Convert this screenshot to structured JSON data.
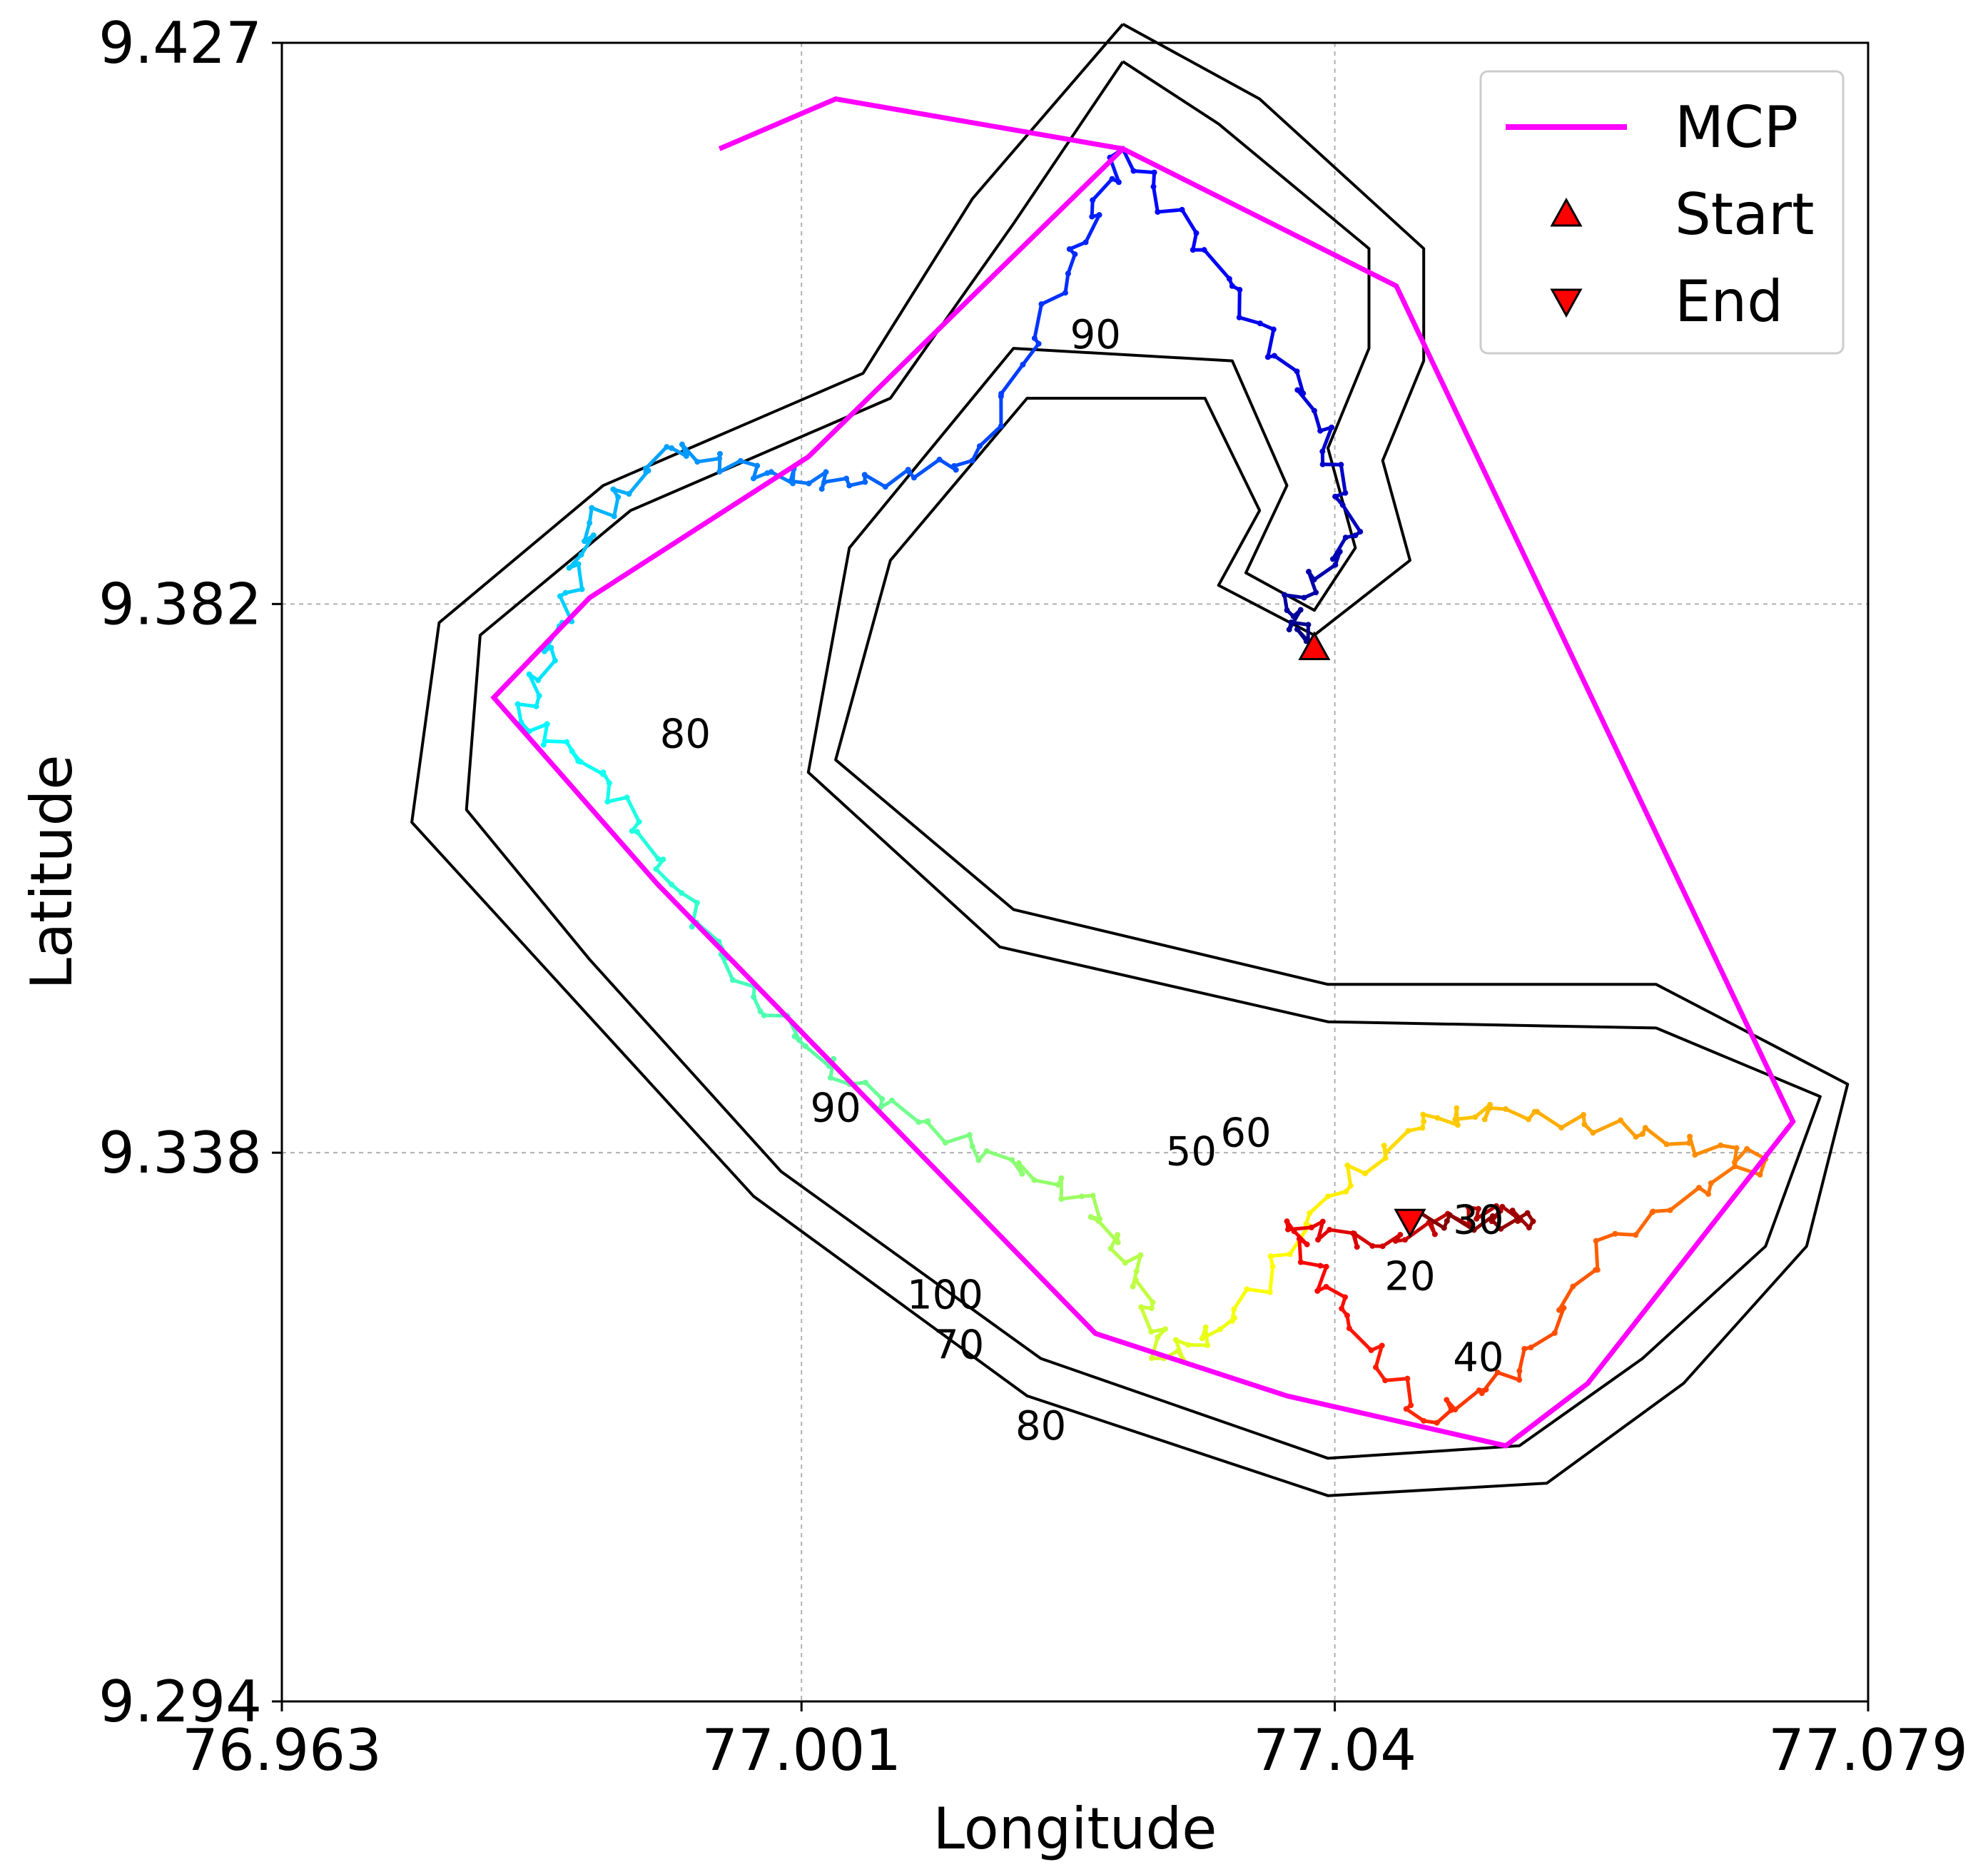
{
  "chart_data": {
    "type": "line",
    "xlabel": "Longitude",
    "ylabel": "Latitude",
    "xlim": [
      76.963,
      77.079
    ],
    "ylim": [
      9.294,
      9.427
    ],
    "xticks": [
      {
        "value": 76.963,
        "label": "76.963"
      },
      {
        "value": 77.001,
        "label": "77.001"
      },
      {
        "value": 77.04,
        "label": "77.04"
      },
      {
        "value": 77.079,
        "label": "77.079"
      }
    ],
    "yticks": [
      {
        "value": 9.294,
        "label": "9.294"
      },
      {
        "value": 9.338,
        "label": "9.338"
      },
      {
        "value": 9.382,
        "label": "9.382"
      },
      {
        "value": 9.427,
        "label": "9.427"
      }
    ],
    "grid": true,
    "legend": {
      "placement": "top-right",
      "entries": [
        {
          "label": "MCP",
          "marker": "line",
          "color": "#ff00ff"
        },
        {
          "label": "Start",
          "marker": "triangle-up",
          "color": "#ff0000"
        },
        {
          "label": "End",
          "marker": "triangle-down",
          "color": "#ff0000"
        }
      ]
    },
    "mcp": {
      "name": "MCP",
      "color": "#ff00ff",
      "points": [
        [
          76.995,
          9.4185
        ],
        [
          77.0035,
          9.4225
        ],
        [
          77.0245,
          9.4185
        ],
        [
          77.0445,
          9.4075
        ],
        [
          77.0735,
          9.3405
        ],
        [
          77.0585,
          9.3195
        ],
        [
          77.0525,
          9.3145
        ],
        [
          77.0365,
          9.3185
        ],
        [
          77.0225,
          9.3235
        ],
        [
          76.9905,
          9.3595
        ],
        [
          76.9785,
          9.3745
        ],
        [
          76.9855,
          9.3825
        ],
        [
          77.0015,
          9.3938
        ],
        [
          77.0245,
          9.4185
        ]
      ]
    },
    "start": {
      "label": "Start",
      "x": 77.0385,
      "y": 9.3785,
      "color": "#ff0000"
    },
    "end": {
      "label": "End",
      "x": 77.0455,
      "y": 9.3325,
      "color": "#ff0000"
    },
    "contour_labels": [
      {
        "text": "90",
        "x": 77.0225,
        "y": 9.4025
      },
      {
        "text": "80",
        "x": 76.9925,
        "y": 9.3705
      },
      {
        "text": "90",
        "x": 77.0035,
        "y": 9.3405
      },
      {
        "text": "100",
        "x": 77.0115,
        "y": 9.3255
      },
      {
        "text": "50",
        "x": 77.0295,
        "y": 9.337
      },
      {
        "text": "60",
        "x": 77.0335,
        "y": 9.3385
      },
      {
        "text": "30",
        "x": 77.0505,
        "y": 9.3315
      },
      {
        "text": "20",
        "x": 77.0455,
        "y": 9.327
      },
      {
        "text": "40",
        "x": 77.0505,
        "y": 9.3205
      },
      {
        "text": "70",
        "x": 77.0125,
        "y": 9.3215
      },
      {
        "text": "80",
        "x": 77.0185,
        "y": 9.315
      }
    ],
    "contours": [
      [
        [
          77.0245,
          9.4285
        ],
        [
          77.0345,
          9.4225
        ],
        [
          77.0465,
          9.4105
        ],
        [
          77.0465,
          9.4015
        ],
        [
          77.0435,
          9.3935
        ],
        [
          77.0455,
          9.3855
        ],
        [
          77.0385,
          9.3795
        ],
        [
          77.0315,
          9.3835
        ],
        [
          77.0345,
          9.3895
        ],
        [
          77.0305,
          9.3985
        ],
        [
          77.0175,
          9.3985
        ],
        [
          77.0075,
          9.3855
        ],
        [
          77.0035,
          9.3695
        ],
        [
          77.0165,
          9.3575
        ],
        [
          77.0395,
          9.3515
        ],
        [
          77.0635,
          9.3515
        ],
        [
          77.0775,
          9.3435
        ],
        [
          77.0745,
          9.3305
        ],
        [
          77.0655,
          9.3195
        ],
        [
          77.0555,
          9.3115
        ],
        [
          77.0395,
          9.3105
        ],
        [
          77.0175,
          9.3185
        ],
        [
          76.9975,
          9.3345
        ],
        [
          76.9825,
          9.3525
        ],
        [
          76.9725,
          9.3645
        ],
        [
          76.9745,
          9.3805
        ],
        [
          76.9865,
          9.3915
        ],
        [
          77.0055,
          9.4005
        ],
        [
          77.0135,
          9.4145
        ],
        [
          77.0245,
          9.4285
        ]
      ],
      [
        [
          77.0245,
          9.4255
        ],
        [
          77.0315,
          9.4205
        ],
        [
          77.0425,
          9.4105
        ],
        [
          77.0425,
          9.4025
        ],
        [
          77.0395,
          9.3945
        ],
        [
          77.0415,
          9.3865
        ],
        [
          77.0385,
          9.3815
        ],
        [
          77.0335,
          9.3845
        ],
        [
          77.0365,
          9.3915
        ],
        [
          77.0325,
          9.4015
        ],
        [
          77.0165,
          9.4025
        ],
        [
          77.0045,
          9.3865
        ],
        [
          77.0015,
          9.3685
        ],
        [
          77.0155,
          9.3545
        ],
        [
          77.0395,
          9.3485
        ],
        [
          77.0635,
          9.348
        ],
        [
          77.0755,
          9.3425
        ],
        [
          77.0715,
          9.3305
        ],
        [
          77.0625,
          9.3215
        ],
        [
          77.0535,
          9.3145
        ],
        [
          77.0395,
          9.3135
        ],
        [
          77.0185,
          9.3215
        ],
        [
          76.9995,
          9.3365
        ],
        [
          76.9855,
          9.3535
        ],
        [
          76.9765,
          9.3655
        ],
        [
          76.9775,
          9.3795
        ],
        [
          76.9885,
          9.3895
        ],
        [
          77.0075,
          9.3985
        ],
        [
          77.0165,
          9.4125
        ],
        [
          77.0245,
          9.4255
        ]
      ]
    ]
  }
}
